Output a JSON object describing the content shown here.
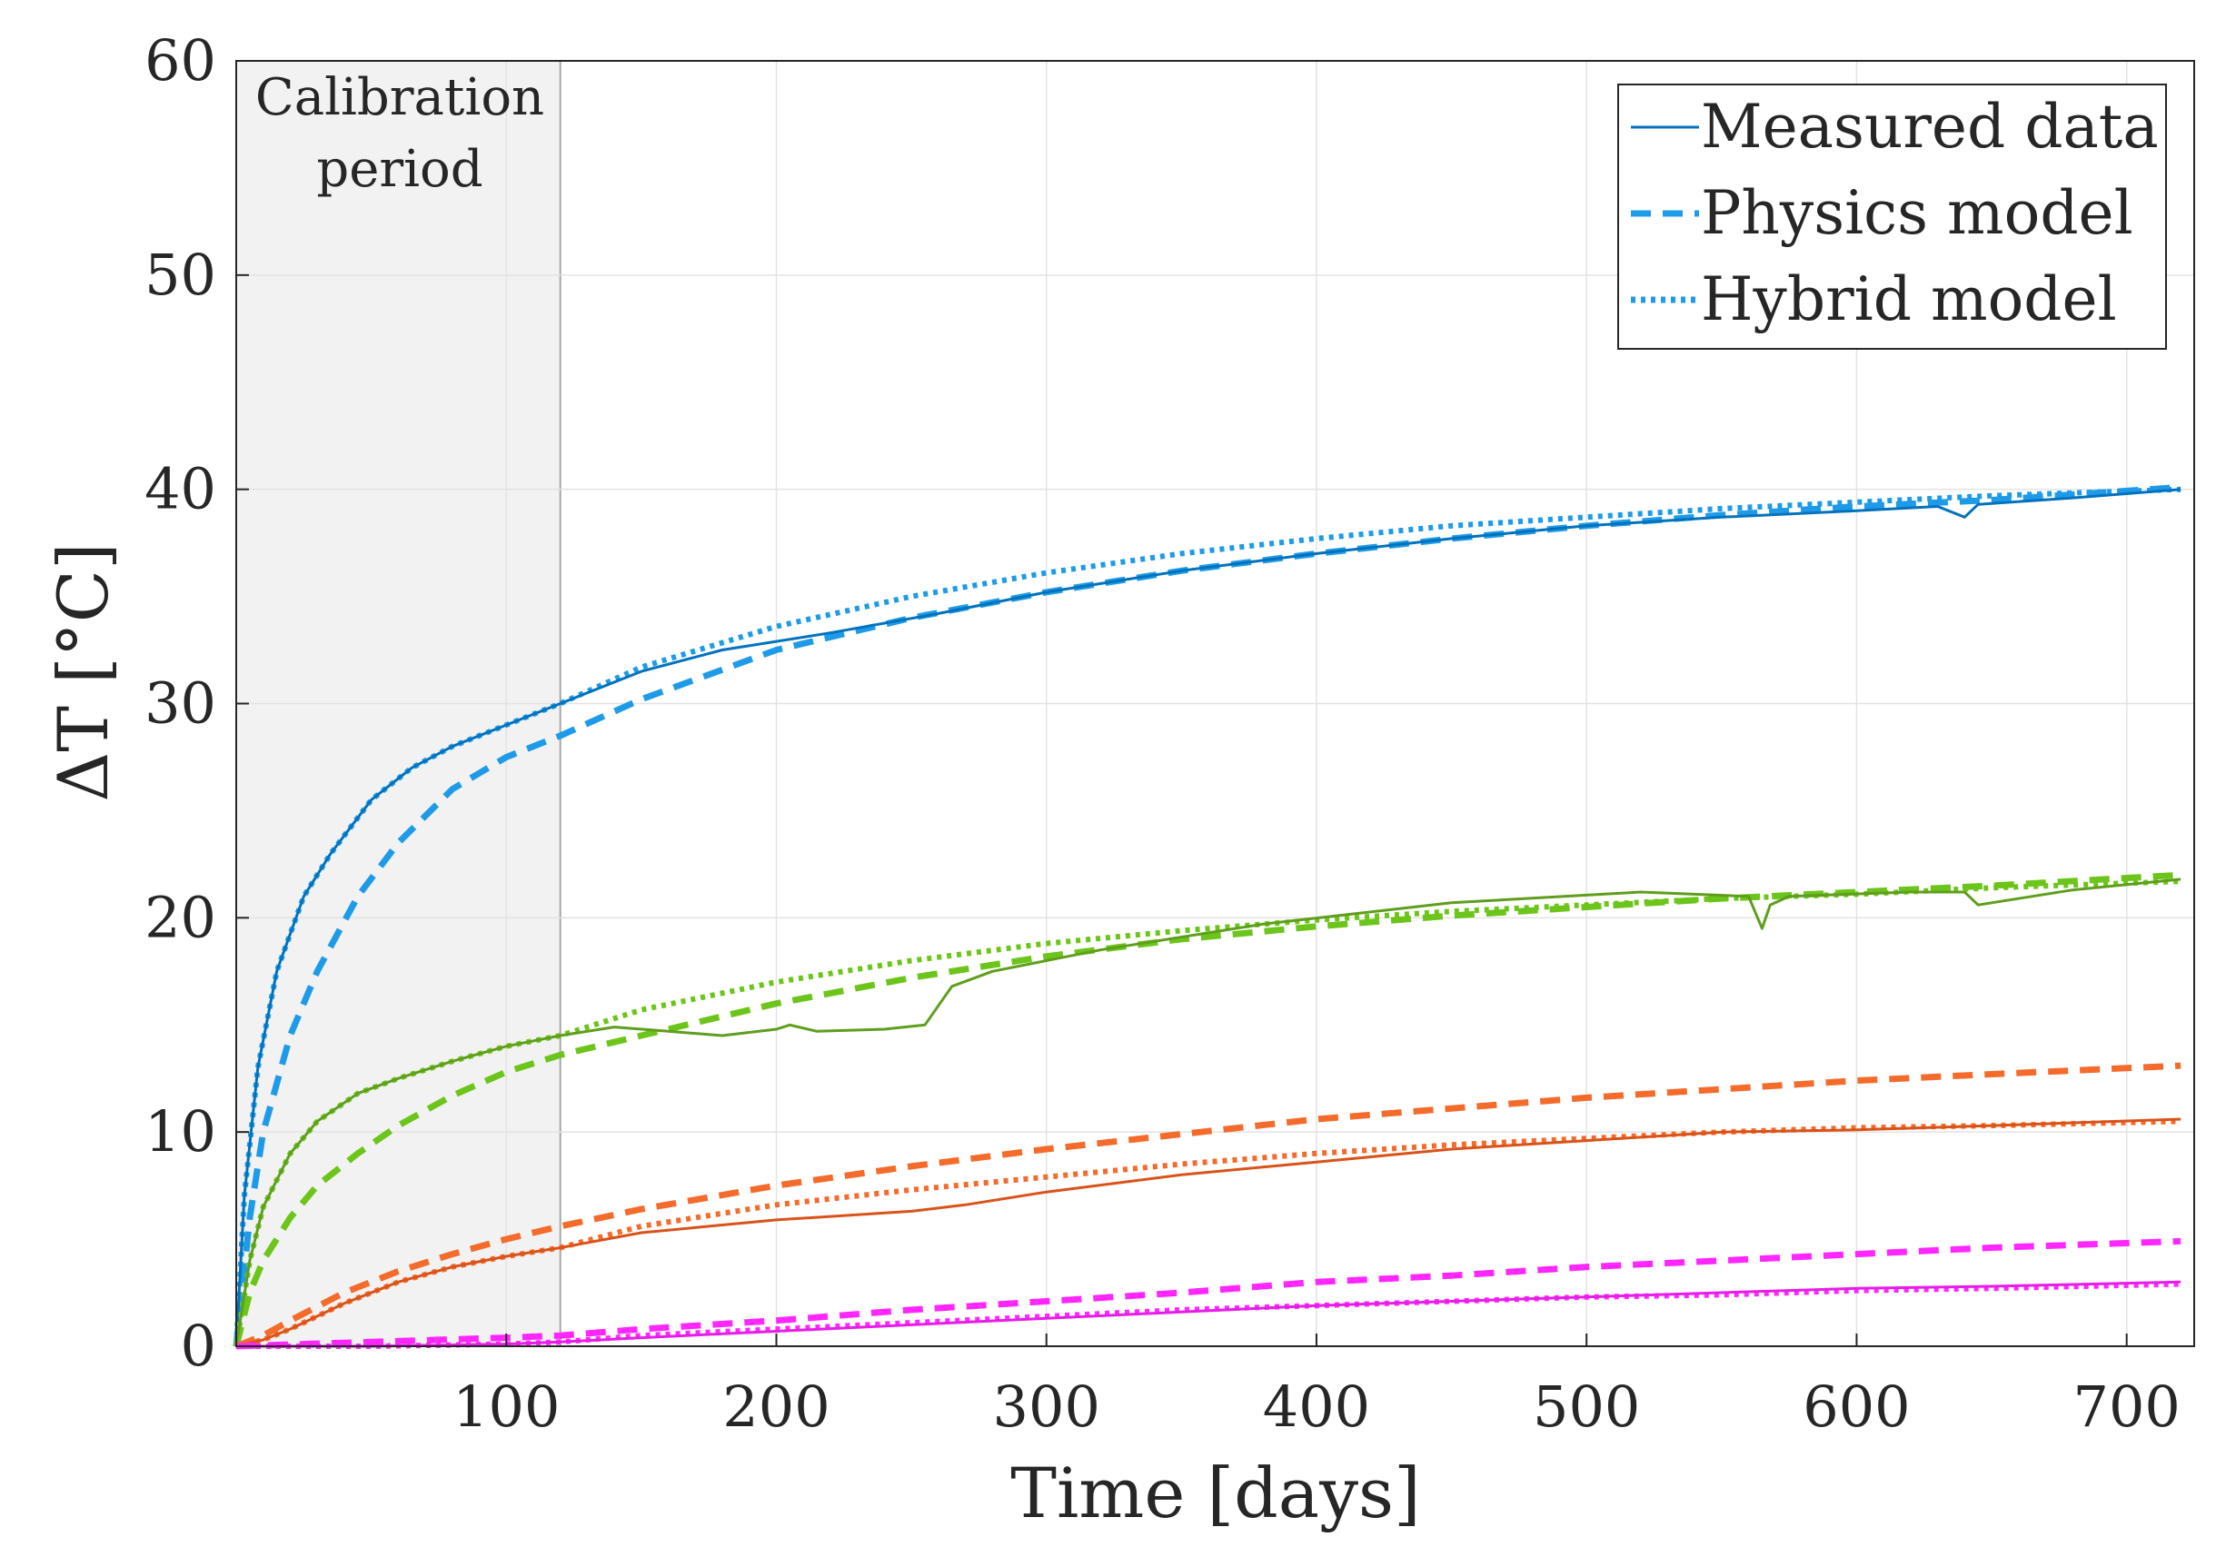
{
  "chart_data": {
    "type": "line",
    "title": "",
    "xlabel": "Time [days]",
    "ylabel": "ΔT [°C]",
    "xlim": [
      0,
      725
    ],
    "ylim": [
      0,
      60
    ],
    "x_ticks": [
      100,
      200,
      300,
      400,
      500,
      600,
      700
    ],
    "y_ticks": [
      0,
      10,
      20,
      30,
      40,
      50,
      60
    ],
    "grid": true,
    "legend_position": "top-right",
    "legend": [
      {
        "label": "Measured data",
        "style": "solid"
      },
      {
        "label": "Physics model",
        "style": "dashed"
      },
      {
        "label": "Hybrid model",
        "style": "dotted"
      }
    ],
    "annotation": {
      "line1": "Calibration",
      "line2": "period",
      "x_start": 0,
      "x_end": 120
    },
    "groups": [
      {
        "name": "blue",
        "color_measured": "#0072BD",
        "color_model": "#1E9BE8",
        "measured": {
          "x": [
            0,
            3,
            8,
            15,
            25,
            35,
            50,
            65,
            80,
            100,
            120,
            150,
            180,
            220,
            260,
            300,
            350,
            400,
            450,
            500,
            550,
            600,
            630,
            640,
            645,
            680,
            720
          ],
          "y": [
            0,
            7,
            13,
            17.5,
            21,
            23,
            25.5,
            27,
            28,
            29,
            30,
            31.5,
            32.5,
            33.3,
            34.2,
            35.2,
            36.2,
            37,
            37.7,
            38.3,
            38.7,
            39,
            39.2,
            38.7,
            39.3,
            39.6,
            40
          ]
        },
        "physics": {
          "x": [
            0,
            5,
            10,
            20,
            30,
            45,
            60,
            80,
            100,
            120,
            150,
            200,
            250,
            300,
            350,
            400,
            450,
            500,
            550,
            600,
            650,
            720
          ],
          "y": [
            0,
            6,
            10,
            14.5,
            17.5,
            21,
            23.5,
            26,
            27.5,
            28.5,
            30.2,
            32.5,
            34,
            35.2,
            36.2,
            37,
            37.7,
            38.3,
            38.8,
            39.2,
            39.5,
            40.1
          ]
        },
        "hybrid": {
          "x": [
            0,
            3,
            8,
            15,
            25,
            35,
            50,
            65,
            80,
            100,
            120,
            150,
            200,
            250,
            300,
            350,
            400,
            450,
            500,
            550,
            600,
            650,
            720
          ],
          "y": [
            0,
            7,
            13,
            17.5,
            21,
            23,
            25.5,
            27,
            28,
            29,
            30,
            31.7,
            33.6,
            35,
            36.1,
            37,
            37.7,
            38.3,
            38.7,
            39.1,
            39.4,
            39.7,
            40
          ]
        }
      },
      {
        "name": "green",
        "color_measured": "#5E9E1C",
        "color_model": "#6CC51A",
        "measured": {
          "x": [
            0,
            5,
            10,
            20,
            30,
            45,
            60,
            80,
            100,
            120,
            140,
            160,
            180,
            200,
            205,
            215,
            240,
            255,
            265,
            280,
            320,
            380,
            450,
            520,
            560,
            565,
            568,
            575,
            620,
            640,
            645,
            680,
            720
          ],
          "y": [
            0,
            4,
            6.5,
            9,
            10.5,
            11.8,
            12.5,
            13.3,
            14,
            14.5,
            14.9,
            14.7,
            14.5,
            14.8,
            15,
            14.7,
            14.8,
            15,
            16.8,
            17.5,
            18.5,
            19.7,
            20.7,
            21.2,
            21,
            19.5,
            20.6,
            21,
            21.2,
            21.2,
            20.6,
            21.3,
            21.8
          ]
        },
        "physics": {
          "x": [
            0,
            5,
            10,
            20,
            30,
            45,
            60,
            80,
            100,
            120,
            150,
            200,
            250,
            300,
            350,
            400,
            450,
            500,
            550,
            600,
            650,
            720
          ],
          "y": [
            0,
            2.5,
            4,
            6,
            7.5,
            9,
            10.3,
            11.7,
            12.8,
            13.6,
            14.5,
            16,
            17.2,
            18.2,
            19,
            19.6,
            20.1,
            20.5,
            20.9,
            21.2,
            21.5,
            22
          ]
        },
        "hybrid": {
          "x": [
            0,
            5,
            10,
            20,
            30,
            45,
            60,
            80,
            100,
            120,
            150,
            200,
            250,
            300,
            350,
            400,
            450,
            500,
            550,
            600,
            650,
            720
          ],
          "y": [
            0,
            4,
            6.5,
            9,
            10.5,
            11.8,
            12.5,
            13.3,
            14,
            14.5,
            15.7,
            17,
            18,
            18.8,
            19.4,
            19.9,
            20.3,
            20.6,
            20.9,
            21.1,
            21.4,
            21.7
          ]
        }
      },
      {
        "name": "orange",
        "color_measured": "#D95319",
        "color_model": "#F46B2B",
        "measured": {
          "x": [
            0,
            10,
            20,
            40,
            60,
            80,
            100,
            120,
            150,
            200,
            250,
            270,
            300,
            350,
            400,
            450,
            500,
            550,
            600,
            650,
            720
          ],
          "y": [
            0,
            0.3,
            0.8,
            2,
            3,
            3.7,
            4.2,
            4.6,
            5.3,
            5.9,
            6.3,
            6.6,
            7.2,
            8,
            8.6,
            9.2,
            9.6,
            10,
            10.1,
            10.3,
            10.6
          ]
        },
        "physics": {
          "x": [
            0,
            10,
            20,
            40,
            60,
            80,
            100,
            120,
            150,
            200,
            250,
            300,
            350,
            400,
            450,
            500,
            550,
            600,
            650,
            720
          ],
          "y": [
            0,
            0.5,
            1.2,
            2.5,
            3.5,
            4.3,
            5,
            5.6,
            6.4,
            7.5,
            8.4,
            9.2,
            9.9,
            10.6,
            11.1,
            11.6,
            12,
            12.4,
            12.7,
            13.1
          ]
        },
        "hybrid": {
          "x": [
            0,
            10,
            20,
            40,
            60,
            80,
            100,
            120,
            150,
            200,
            250,
            300,
            350,
            400,
            450,
            500,
            550,
            600,
            650,
            720
          ],
          "y": [
            0,
            0.3,
            0.8,
            2,
            3,
            3.7,
            4.2,
            4.6,
            5.6,
            6.6,
            7.3,
            7.9,
            8.5,
            9,
            9.4,
            9.7,
            10,
            10.2,
            10.3,
            10.5
          ]
        }
      },
      {
        "name": "magenta",
        "color_measured": "#E81CE8",
        "color_model": "#FF26FF",
        "measured": {
          "x": [
            0,
            50,
            100,
            120,
            150,
            200,
            250,
            300,
            350,
            400,
            450,
            500,
            550,
            600,
            650,
            720
          ],
          "y": [
            0,
            0,
            0.1,
            0.2,
            0.4,
            0.7,
            1,
            1.3,
            1.6,
            1.9,
            2.1,
            2.3,
            2.5,
            2.7,
            2.8,
            3
          ]
        },
        "physics": {
          "x": [
            0,
            25,
            50,
            75,
            100,
            120,
            150,
            200,
            250,
            300,
            350,
            400,
            450,
            500,
            550,
            600,
            650,
            720
          ],
          "y": [
            0,
            0.1,
            0.2,
            0.3,
            0.4,
            0.5,
            0.8,
            1.2,
            1.7,
            2.1,
            2.5,
            3,
            3.3,
            3.7,
            4,
            4.3,
            4.6,
            4.9
          ]
        },
        "hybrid": {
          "x": [
            0,
            50,
            100,
            120,
            150,
            200,
            250,
            300,
            350,
            400,
            450,
            500,
            550,
            600,
            650,
            720
          ],
          "y": [
            0,
            0,
            0.1,
            0.2,
            0.5,
            0.8,
            1.1,
            1.4,
            1.7,
            1.9,
            2.1,
            2.3,
            2.4,
            2.6,
            2.7,
            2.9
          ]
        }
      }
    ]
  }
}
